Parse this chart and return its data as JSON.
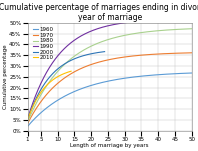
{
  "title": "Cumulative percentage of marriages ending in divorce by\nyear of marriage",
  "xlabel": "Length of marriage by years",
  "ylabel": "Cumulative percentage",
  "series": [
    {
      "label": "1960",
      "color": "#5b9bd5",
      "asymptote": 0.275,
      "rate": 0.072,
      "xmax": 50
    },
    {
      "label": "1970",
      "color": "#ed7d31",
      "asymptote": 0.365,
      "rate": 0.092,
      "xmax": 50
    },
    {
      "label": "1980",
      "color": "#a9d18e",
      "asymptote": 0.48,
      "rate": 0.085,
      "xmax": 50
    },
    {
      "label": "1990",
      "color": "#7030a0",
      "asymptote": 0.52,
      "rate": 0.11,
      "xmax": 34
    },
    {
      "label": "2000",
      "color": "#2e75b6",
      "asymptote": 0.38,
      "rate": 0.14,
      "xmax": 24
    },
    {
      "label": "2010",
      "color": "#ffc000",
      "asymptote": 0.3,
      "rate": 0.18,
      "xmax": 14
    }
  ],
  "xlim": [
    1,
    50
  ],
  "ylim": [
    0,
    0.5
  ],
  "ytick_vals": [
    0,
    0.05,
    0.1,
    0.15,
    0.2,
    0.25,
    0.3,
    0.35,
    0.4,
    0.45,
    0.5
  ],
  "xtick_vals": [
    1,
    5,
    10,
    15,
    20,
    25,
    30,
    35,
    40,
    45,
    50
  ],
  "background_color": "#ffffff",
  "grid_color": "#bfbfbf",
  "title_fontsize": 5.5,
  "label_fontsize": 4.0,
  "tick_fontsize": 4.0,
  "legend_fontsize": 4.0,
  "linewidth": 0.8
}
